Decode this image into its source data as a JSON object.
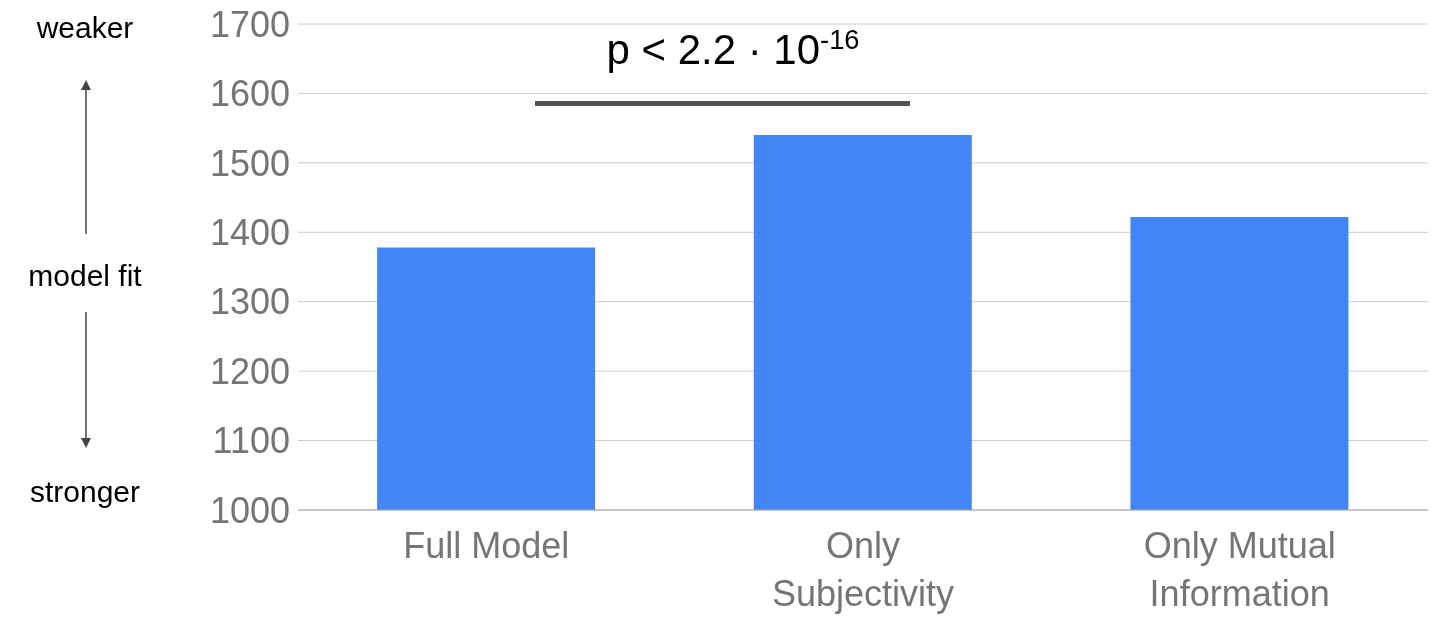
{
  "chart_data": {
    "type": "bar",
    "categories": [
      "Full Model",
      "Only Subjectivity",
      "Only Mutual Information"
    ],
    "values": [
      1378,
      1540,
      1422
    ],
    "color": "#4285f4",
    "ylim": [
      1000,
      1700
    ],
    "yticks": [
      1000,
      1100,
      1200,
      1300,
      1400,
      1500,
      1600,
      1700
    ],
    "grid": "y",
    "annotations": [
      "weaker",
      "model fit",
      "stronger",
      "p < 2.2 · 10$^{-16}$"
    ]
  }
}
